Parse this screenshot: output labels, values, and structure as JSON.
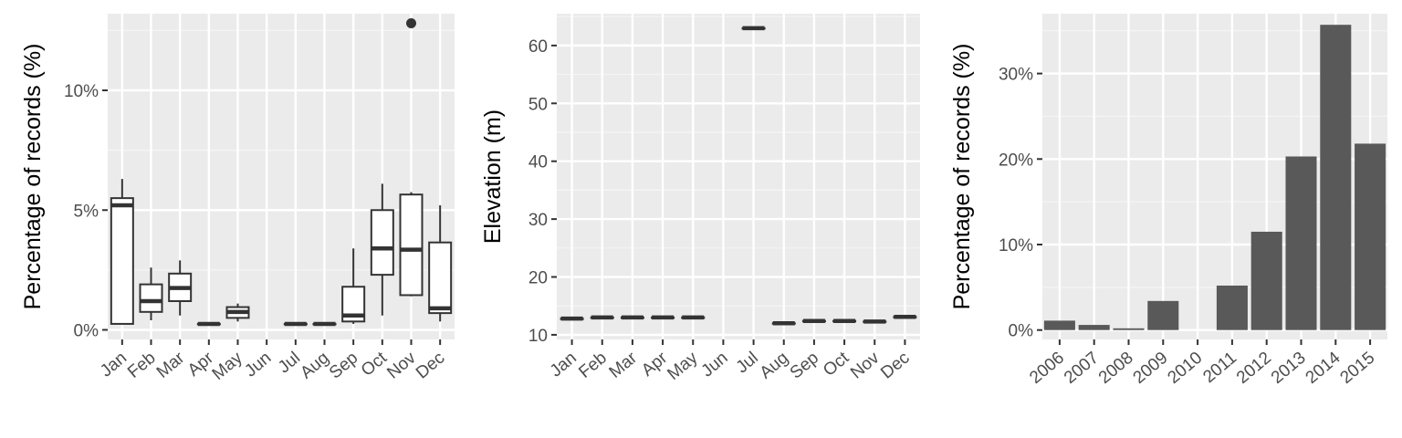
{
  "colors": {
    "panel_background": "#ebebeb",
    "grid_major": "#ffffff",
    "grid_minor": "#f5f5f5",
    "box_outline": "#333333",
    "box_fill": "#ffffff",
    "bar_fill": "#595959",
    "tick_text": "#4d4d4d"
  },
  "chart_data": [
    {
      "type": "box",
      "title": "",
      "xlabel": "",
      "ylabel": "Percentage of records (%)",
      "ylim": [
        -0.4,
        13.2
      ],
      "yticks": [
        0,
        5,
        10
      ],
      "ytick_labels": [
        "0%",
        "5%",
        "10%"
      ],
      "categories": [
        "Jan",
        "Feb",
        "Mar",
        "Apr",
        "May",
        "Jun",
        "Jul",
        "Aug",
        "Sep",
        "Oct",
        "Nov",
        "Dec"
      ],
      "boxes": [
        {
          "min": 0.25,
          "q1": 0.25,
          "median": 5.2,
          "q3": 5.5,
          "max": 6.3,
          "outliers": []
        },
        {
          "min": 0.4,
          "q1": 0.75,
          "median": 1.2,
          "q3": 1.9,
          "max": 2.6,
          "outliers": []
        },
        {
          "min": 0.6,
          "q1": 1.2,
          "median": 1.75,
          "q3": 2.35,
          "max": 2.9,
          "outliers": []
        },
        {
          "min": 0.25,
          "q1": 0.25,
          "median": 0.25,
          "q3": 0.25,
          "max": 0.25,
          "outliers": []
        },
        {
          "min": 0.35,
          "q1": 0.5,
          "median": 0.75,
          "q3": 0.95,
          "max": 1.1,
          "outliers": []
        },
        null,
        {
          "min": 0.25,
          "q1": 0.25,
          "median": 0.25,
          "q3": 0.25,
          "max": 0.25,
          "outliers": []
        },
        {
          "min": 0.25,
          "q1": 0.25,
          "median": 0.25,
          "q3": 0.25,
          "max": 0.25,
          "outliers": []
        },
        {
          "min": 0.25,
          "q1": 0.35,
          "median": 0.6,
          "q3": 1.8,
          "max": 3.4,
          "outliers": []
        },
        {
          "min": 0.6,
          "q1": 2.3,
          "median": 3.4,
          "q3": 5.0,
          "max": 6.1,
          "outliers": []
        },
        {
          "min": 1.4,
          "q1": 1.45,
          "median": 3.35,
          "q3": 5.65,
          "max": 5.75,
          "outliers": [
            12.8
          ]
        },
        {
          "min": 0.35,
          "q1": 0.7,
          "median": 0.9,
          "q3": 3.65,
          "max": 5.2,
          "outliers": []
        }
      ]
    },
    {
      "type": "box",
      "title": "",
      "xlabel": "",
      "ylabel": "Elevation (m)",
      "ylim": [
        9.2,
        65.5
      ],
      "yticks": [
        10,
        20,
        30,
        40,
        50,
        60
      ],
      "ytick_labels": [
        "10",
        "20",
        "30",
        "40",
        "50",
        "60"
      ],
      "categories": [
        "Jan",
        "Feb",
        "Mar",
        "Apr",
        "May",
        "Jun",
        "Jul",
        "Aug",
        "Sep",
        "Oct",
        "Nov",
        "Dec"
      ],
      "boxes": [
        {
          "min": 12.8,
          "q1": 12.8,
          "median": 12.8,
          "q3": 12.8,
          "max": 12.8,
          "outliers": []
        },
        {
          "min": 13.0,
          "q1": 13.0,
          "median": 13.0,
          "q3": 13.0,
          "max": 13.0,
          "outliers": []
        },
        {
          "min": 13.0,
          "q1": 13.0,
          "median": 13.0,
          "q3": 13.0,
          "max": 13.0,
          "outliers": []
        },
        {
          "min": 13.0,
          "q1": 13.0,
          "median": 13.0,
          "q3": 13.0,
          "max": 13.0,
          "outliers": []
        },
        {
          "min": 13.0,
          "q1": 13.0,
          "median": 13.0,
          "q3": 13.0,
          "max": 13.0,
          "outliers": []
        },
        null,
        {
          "min": 63.0,
          "q1": 63.0,
          "median": 63.0,
          "q3": 63.0,
          "max": 63.0,
          "outliers": []
        },
        {
          "min": 12.0,
          "q1": 12.0,
          "median": 12.0,
          "q3": 12.0,
          "max": 12.0,
          "outliers": []
        },
        {
          "min": 12.4,
          "q1": 12.4,
          "median": 12.4,
          "q3": 12.4,
          "max": 12.4,
          "outliers": []
        },
        {
          "min": 12.4,
          "q1": 12.4,
          "median": 12.4,
          "q3": 12.4,
          "max": 12.4,
          "outliers": []
        },
        {
          "min": 12.3,
          "q1": 12.3,
          "median": 12.3,
          "q3": 12.3,
          "max": 12.3,
          "outliers": []
        },
        {
          "min": 13.1,
          "q1": 13.1,
          "median": 13.1,
          "q3": 13.1,
          "max": 13.1,
          "outliers": []
        }
      ]
    },
    {
      "type": "bar",
      "title": "",
      "xlabel": "",
      "ylabel": "Percentage of records (%)",
      "ylim": [
        -1.1,
        37.0
      ],
      "yticks": [
        0,
        10,
        20,
        30
      ],
      "ytick_labels": [
        "0%",
        "10%",
        "20%",
        "30%"
      ],
      "categories": [
        "2006",
        "2007",
        "2008",
        "2009",
        "2010",
        "2011",
        "2012",
        "2013",
        "2014",
        "2015"
      ],
      "values": [
        1.1,
        0.6,
        0.2,
        3.4,
        0.0,
        5.2,
        11.5,
        20.3,
        35.7,
        21.8
      ]
    }
  ]
}
